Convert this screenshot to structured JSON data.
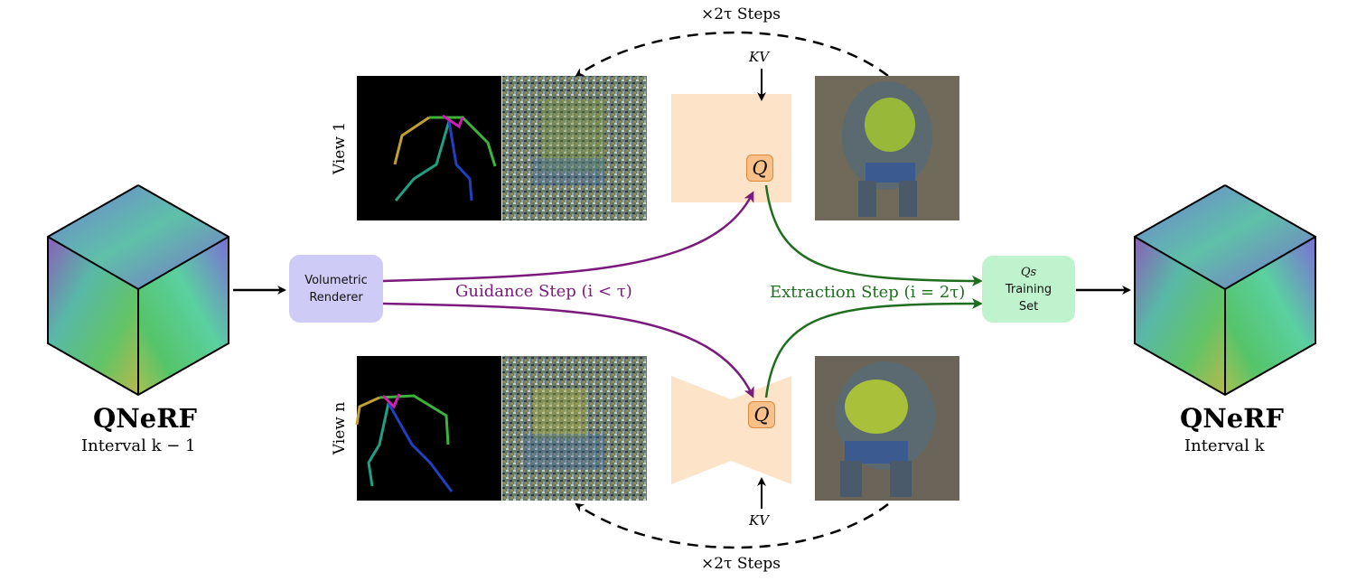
{
  "left_qnerf": {
    "title": "QNeRF",
    "subtitle": "Interval k − 1"
  },
  "right_qnerf": {
    "title": "QNeRF",
    "subtitle": "Interval k"
  },
  "renderer": {
    "line1": "Volumetric",
    "line2": "Renderer"
  },
  "training_set": {
    "line1": "Qs",
    "line2": "Training",
    "line3": "Set"
  },
  "guidance_step": "Guidance Step (i < τ)",
  "extraction_step": "Extraction Step (i = 2τ)",
  "top_loop_label": "×2τ Steps",
  "bottom_loop_label": "×2τ Steps",
  "kv_top": "KV",
  "kv_bottom": "KV",
  "q_top": "Q",
  "q_bottom": "Q",
  "view_top": "View 1",
  "view_bottom": "View n",
  "colors": {
    "renderer_box": "#cfcbf7",
    "training_box": "#bff3cd",
    "unet_shape": "#fde4c8",
    "guidance_arrow": "#7a1a7c",
    "extraction_arrow": "#1f6e1f",
    "q_badge": "#f9c08a"
  }
}
